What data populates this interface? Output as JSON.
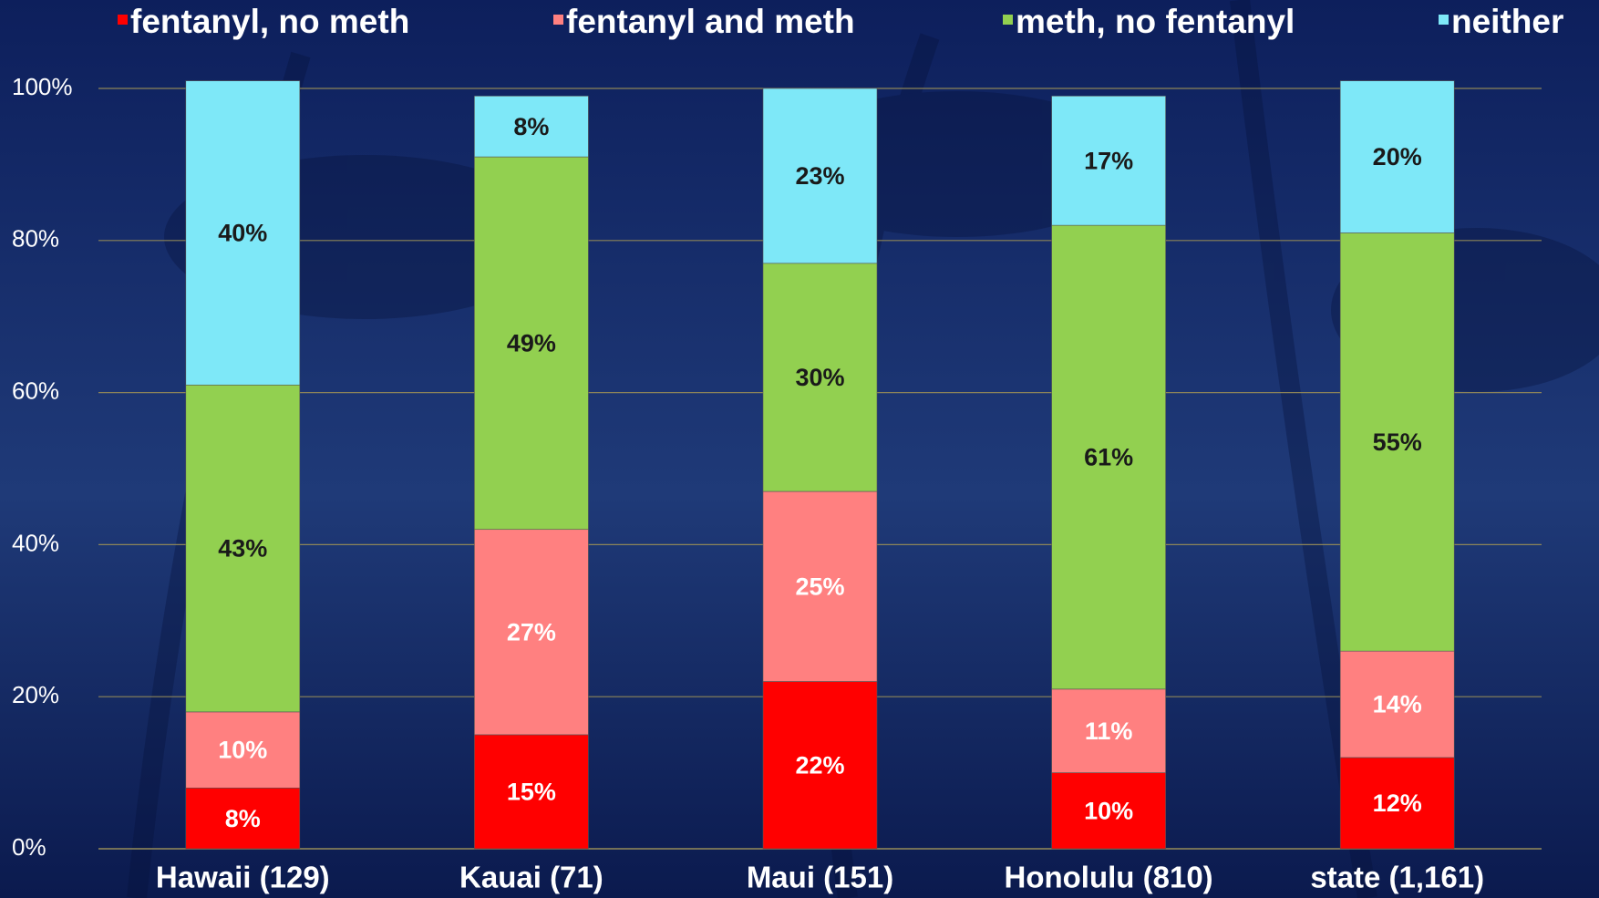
{
  "chart_data": {
    "type": "stacked_bar",
    "categories": [
      "Hawaii (129)",
      "Kauai (71)",
      "Maui (151)",
      "Honolulu (810)",
      "state (1,161)"
    ],
    "series": [
      {
        "name": "fentanyl, no meth",
        "color": "#ff0000",
        "values": [
          8,
          15,
          22,
          10,
          12
        ],
        "value_labels": [
          "8%",
          "15%",
          "22%",
          "10%",
          "12%"
        ]
      },
      {
        "name": "fentanyl and meth",
        "color": "#ff8080",
        "values": [
          10,
          27,
          25,
          11,
          14
        ],
        "value_labels": [
          "10%",
          "27%",
          "25%",
          "11%",
          "14%"
        ]
      },
      {
        "name": "meth, no fentanyl",
        "color": "#92d050",
        "values": [
          43,
          49,
          30,
          61,
          55
        ],
        "value_labels": [
          "43%",
          "49%",
          "30%",
          "61%",
          "55%"
        ]
      },
      {
        "name": "neither",
        "color": "#7ee8f8",
        "values": [
          40,
          8,
          23,
          17,
          20
        ],
        "value_labels": [
          "40%",
          "8%",
          "23%",
          "17%",
          "20%"
        ]
      }
    ],
    "ylim": [
      0,
      100
    ],
    "yticks": [
      {
        "value": 0,
        "label": "0%"
      },
      {
        "value": 20,
        "label": "20%"
      },
      {
        "value": 40,
        "label": "40%"
      },
      {
        "value": 60,
        "label": "60%"
      },
      {
        "value": 80,
        "label": "80%"
      },
      {
        "value": 100,
        "label": "100%"
      }
    ],
    "grid": true,
    "legend": "top"
  }
}
